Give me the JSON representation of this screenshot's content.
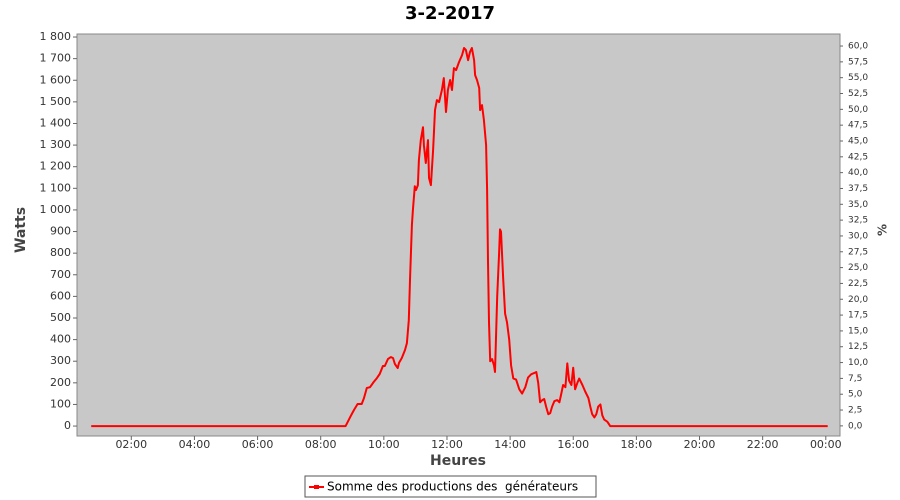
{
  "chart_data": {
    "type": "line",
    "title": "3-2-2017",
    "xlabel": "Heures",
    "ylabel": "Watts",
    "y2label": "%",
    "x": [
      0.73,
      8.79,
      8.95,
      9.05,
      9.17,
      9.3,
      9.37,
      9.46,
      9.56,
      9.68,
      9.78,
      9.87,
      9.97,
      10.03,
      10.13,
      10.22,
      10.29,
      10.35,
      10.44,
      10.48,
      10.57,
      10.67,
      10.73,
      10.79,
      10.83,
      10.89,
      10.92,
      10.98,
      11.02,
      11.08,
      11.11,
      11.17,
      11.24,
      11.27,
      11.33,
      11.4,
      11.43,
      11.49,
      11.56,
      11.62,
      11.68,
      11.75,
      11.84,
      11.9,
      11.97,
      12.03,
      12.1,
      12.16,
      12.22,
      12.29,
      12.38,
      12.48,
      12.54,
      12.6,
      12.67,
      12.73,
      12.79,
      12.86,
      12.89,
      12.95,
      13.02,
      13.05,
      13.11,
      13.17,
      13.24,
      13.27,
      13.3,
      13.33,
      13.37,
      13.43,
      13.49,
      13.52,
      13.59,
      13.65,
      13.68,
      13.71,
      13.78,
      13.84,
      13.9,
      13.97,
      14.03,
      14.1,
      14.19,
      14.29,
      14.38,
      14.48,
      14.57,
      14.67,
      14.76,
      14.83,
      14.89,
      14.95,
      15.02,
      15.08,
      15.14,
      15.21,
      15.27,
      15.33,
      15.4,
      15.49,
      15.56,
      15.62,
      15.68,
      15.75,
      15.81,
      15.87,
      15.94,
      16.0,
      16.06,
      16.13,
      16.19,
      16.29,
      16.38,
      16.48,
      16.54,
      16.6,
      16.67,
      16.73,
      16.79,
      16.86,
      16.92,
      16.98,
      17.08,
      17.17,
      24.06
    ],
    "series": [
      {
        "name": "Somme des productions des  générateurs",
        "color": "#ff0000",
        "values": [
          0,
          0,
          46,
          74,
          102,
          102,
          130,
          176,
          180,
          204,
          222,
          241,
          278,
          278,
          310,
          319,
          315,
          287,
          268,
          292,
          315,
          352,
          384,
          490,
          676,
          930,
          999,
          1110,
          1092,
          1115,
          1231,
          1323,
          1383,
          1300,
          1217,
          1323,
          1148,
          1115,
          1277,
          1462,
          1508,
          1499,
          1555,
          1610,
          1453,
          1555,
          1601,
          1555,
          1656,
          1647,
          1684,
          1717,
          1749,
          1740,
          1693,
          1731,
          1749,
          1693,
          1624,
          1601,
          1564,
          1462,
          1485,
          1416,
          1300,
          1092,
          760,
          480,
          300,
          310,
          280,
          250,
          600,
          800,
          910,
          900,
          680,
          520,
          480,
          400,
          280,
          220,
          215,
          170,
          150,
          180,
          225,
          240,
          245,
          250,
          200,
          110,
          120,
          125,
          90,
          55,
          60,
          90,
          115,
          120,
          110,
          150,
          190,
          180,
          290,
          210,
          190,
          270,
          170,
          200,
          220,
          190,
          160,
          130,
          90,
          55,
          40,
          55,
          90,
          100,
          50,
          30,
          20,
          0,
          0
        ]
      }
    ],
    "xlim": [
      0.28,
      24.45
    ],
    "xticks": [
      {
        "value": 2,
        "label": "02:00"
      },
      {
        "value": 4,
        "label": "04:00"
      },
      {
        "value": 6,
        "label": "06:00"
      },
      {
        "value": 8,
        "label": "08:00"
      },
      {
        "value": 10,
        "label": "10:00"
      },
      {
        "value": 12,
        "label": "12:00"
      },
      {
        "value": 14,
        "label": "14:00"
      },
      {
        "value": 16,
        "label": "16:00"
      },
      {
        "value": 18,
        "label": "18:00"
      },
      {
        "value": 20,
        "label": "20:00"
      },
      {
        "value": 22,
        "label": "22:00"
      },
      {
        "value": 24,
        "label": "00:00"
      }
    ],
    "ylim": [
      -46,
      1814
    ],
    "yticks": [
      0,
      100,
      200,
      300,
      400,
      500,
      600,
      700,
      800,
      900,
      {
        "value": 1000,
        "label": "1 000"
      },
      {
        "value": 1100,
        "label": "1 100"
      },
      {
        "value": 1200,
        "label": "1 200"
      },
      {
        "value": 1300,
        "label": "1 300"
      },
      {
        "value": 1400,
        "label": "1 400"
      },
      {
        "value": 1500,
        "label": "1 500"
      },
      {
        "value": 1600,
        "label": "1 600"
      },
      {
        "value": 1700,
        "label": "1 700"
      },
      {
        "value": 1800,
        "label": "1 800"
      }
    ],
    "y2lim": [
      -1.6,
      61.9
    ],
    "y2ticks": [
      {
        "value": 0,
        "label": "0,0"
      },
      {
        "value": 2.5,
        "label": "2,5"
      },
      {
        "value": 5,
        "label": "5,0"
      },
      {
        "value": 7.5,
        "label": "7,5"
      },
      {
        "value": 10,
        "label": "10,0"
      },
      {
        "value": 12.5,
        "label": "12,5"
      },
      {
        "value": 15,
        "label": "15,0"
      },
      {
        "value": 17.5,
        "label": "17,5"
      },
      {
        "value": 20,
        "label": "20,0"
      },
      {
        "value": 22.5,
        "label": "22,5"
      },
      {
        "value": 25,
        "label": "25,0"
      },
      {
        "value": 27.5,
        "label": "27,5"
      },
      {
        "value": 30,
        "label": "30,0"
      },
      {
        "value": 32.5,
        "label": "32,5"
      },
      {
        "value": 35,
        "label": "35,0"
      },
      {
        "value": 37.5,
        "label": "37,5"
      },
      {
        "value": 40,
        "label": "40,0"
      },
      {
        "value": 42.5,
        "label": "42,5"
      },
      {
        "value": 45,
        "label": "45,0"
      },
      {
        "value": 47.5,
        "label": "47,5"
      },
      {
        "value": 50,
        "label": "50,0"
      },
      {
        "value": 52.5,
        "label": "52,5"
      },
      {
        "value": 55,
        "label": "55,0"
      },
      {
        "value": 57.5,
        "label": "57,5"
      },
      {
        "value": 60,
        "label": "60,0"
      }
    ],
    "grid": false
  }
}
